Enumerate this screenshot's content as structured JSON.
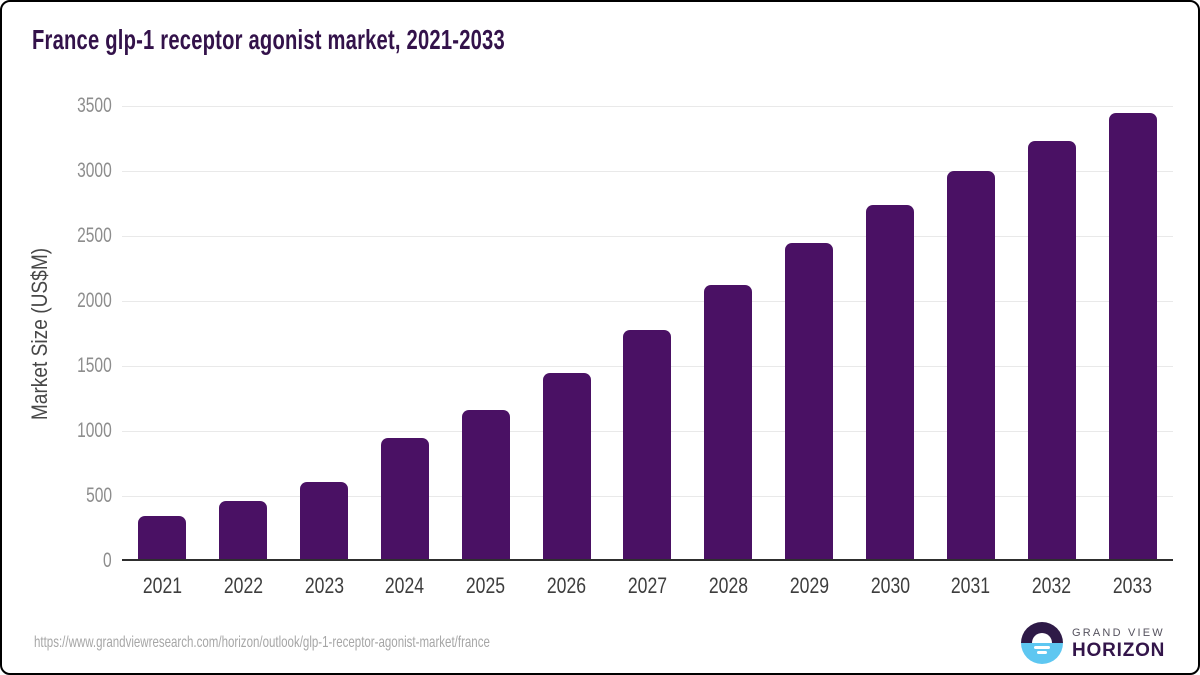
{
  "chart_data": {
    "type": "bar",
    "title": "France glp-1 receptor agonist market, 2021-2033",
    "categories": [
      "2021",
      "2022",
      "2023",
      "2024",
      "2025",
      "2026",
      "2027",
      "2028",
      "2029",
      "2030",
      "2031",
      "2032",
      "2033"
    ],
    "values": [
      345,
      460,
      610,
      945,
      1160,
      1450,
      1775,
      2120,
      2445,
      2735,
      3000,
      3230,
      3445
    ],
    "xlabel": "",
    "ylabel": "Market Size (US$M)",
    "ylim": [
      0,
      3500
    ],
    "ytick_step": 500,
    "yticks": [
      0,
      500,
      1000,
      1500,
      2000,
      2500,
      3000,
      3500
    ],
    "grid": "horizontal",
    "legend_position": "none",
    "bar_style": "rounded-top"
  },
  "footer": {
    "source_url": "https://www.grandviewresearch.com/horizon/outlook/glp-1-receptor-agonist-market/france",
    "logo": {
      "brand_top": "GRAND VIEW",
      "brand_bottom": "HORIZON"
    }
  },
  "colors": {
    "bar": "#4a1164",
    "title_text": "#33124a",
    "y_tick_text": "#8d8d8d",
    "x_tick_text": "#3d3d3d",
    "axis_label_text": "#474747",
    "gridline": "#e9e9e9",
    "axis_line": "#2e2e2e",
    "source_text": "#a6a6a6",
    "logo_dark_half": "#2e1a47",
    "logo_blue_half": "#5ec7f1",
    "logo_brand_top_text": "#55525e",
    "logo_brand_bottom_text": "#33154a"
  }
}
